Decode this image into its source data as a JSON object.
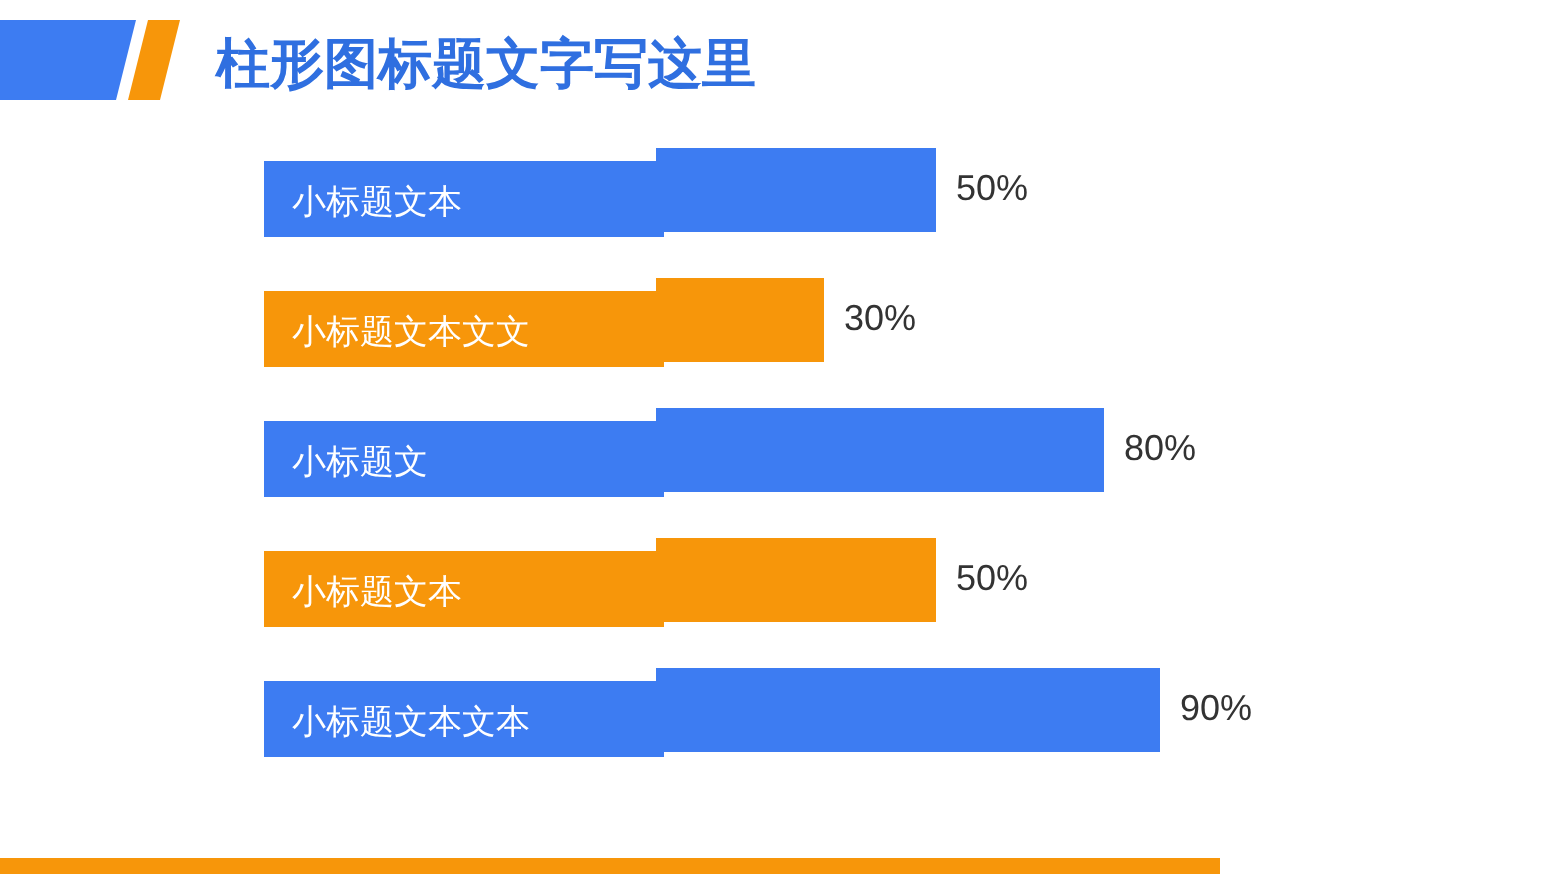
{
  "chart_data": {
    "type": "bar",
    "orientation": "horizontal",
    "title": "柱形图标题文字写这里",
    "categories": [
      "小标题文本",
      "小标题文本文文",
      "小标题文",
      "小标题文本",
      "小标题文本文本"
    ],
    "values": [
      50,
      30,
      80,
      50,
      90
    ],
    "colors": [
      "#3d7cf2",
      "#f7960a",
      "#3d7cf2",
      "#f7960a",
      "#3d7cf2"
    ],
    "value_labels": [
      "50%",
      "30%",
      "80%",
      "50%",
      "90%"
    ],
    "grid": false,
    "legend": false
  }
}
